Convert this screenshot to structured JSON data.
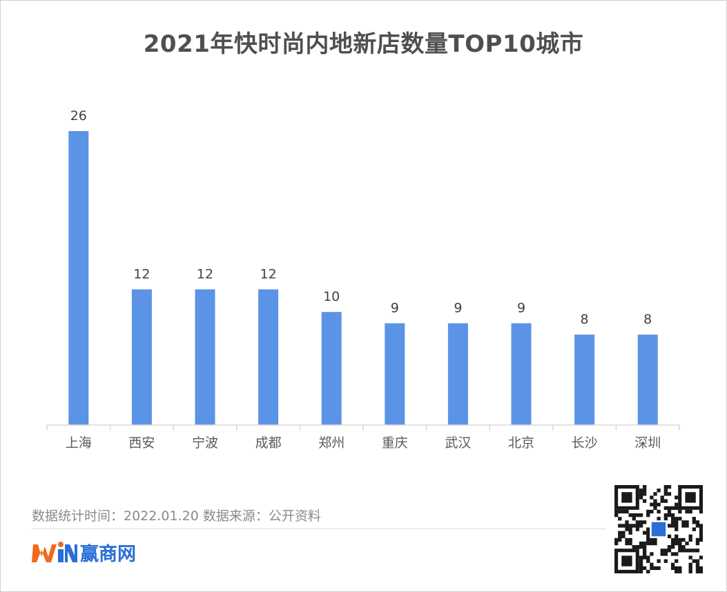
{
  "chart_data": {
    "type": "bar",
    "title": "2021年快时尚内地新店数量TOP10城市",
    "categories": [
      "上海",
      "西安",
      "宁波",
      "成都",
      "郑州",
      "重庆",
      "武汉",
      "北京",
      "长沙",
      "深圳"
    ],
    "values": [
      26,
      12,
      12,
      12,
      10,
      9,
      9,
      9,
      8,
      8
    ],
    "data_labels": [
      "26",
      "12",
      "12",
      "12",
      "10",
      "9",
      "9",
      "9",
      "8",
      "8"
    ],
    "ylim": [
      0,
      26
    ],
    "grid": false,
    "legend": "none",
    "bar_color": "#5b93e6"
  },
  "footer": {
    "note": "数据统计时间：2022.01.20  数据来源：公开资料",
    "brand_name": "赢商网",
    "brand_color": "#2a6fd6",
    "logo_icon": "win-logo-icon",
    "qr_icon": "qr-code-icon"
  }
}
